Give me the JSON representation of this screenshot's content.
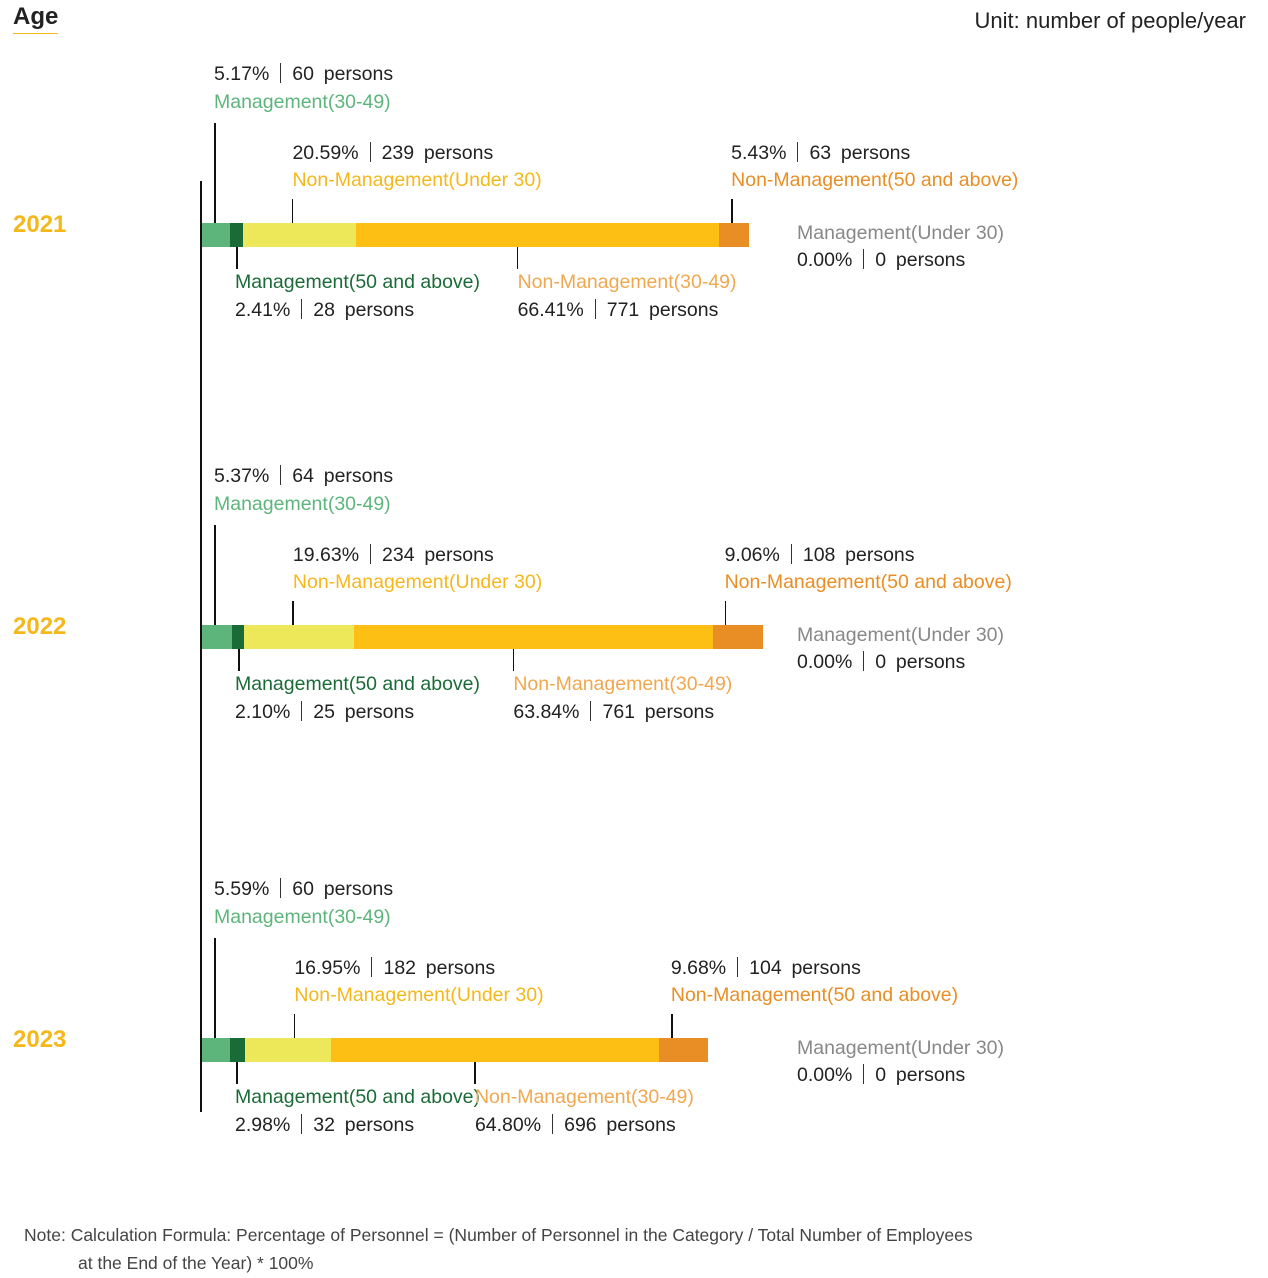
{
  "header": {
    "title": "Age",
    "unit": "Unit: number of people/year"
  },
  "note": {
    "line1": "Note: Calculation Formula: Percentage of Personnel = (Number of Personnel in the Category / Total Number of Employees",
    "line2": "at the End of the Year) * 100%"
  },
  "chart_data": {
    "type": "bar",
    "orientation": "horizontal-stacked",
    "title": "Age",
    "unit": "Unit: number of people/year",
    "categories": [
      "2021",
      "2022",
      "2023"
    ],
    "series": [
      {
        "name": "Management(Under 30)",
        "key": "mu30",
        "color": "#888888",
        "percent": [
          "0.00%",
          "0.00%",
          "0.00%"
        ],
        "persons": [
          0,
          0,
          0
        ]
      },
      {
        "name": "Management(30-49)",
        "key": "m3049",
        "color": "#5db57c",
        "percent": [
          "5.17%",
          "5.37%",
          "5.59%"
        ],
        "persons": [
          60,
          64,
          60
        ]
      },
      {
        "name": "Management(50 and above)",
        "key": "m50",
        "color": "#1a6b37",
        "percent": [
          "2.41%",
          "2.10%",
          "2.98%"
        ],
        "persons": [
          28,
          25,
          32
        ]
      },
      {
        "name": "Non-Management(Under 30)",
        "key": "nu30",
        "color": "#ede85a",
        "percent": [
          "20.59%",
          "19.63%",
          "16.95%"
        ],
        "persons": [
          239,
          234,
          182
        ]
      },
      {
        "name": "Non-Management(30-49)",
        "key": "n3049",
        "color": "#fdbf13",
        "percent": [
          "66.41%",
          "63.84%",
          "64.80%"
        ],
        "persons": [
          771,
          761,
          696
        ]
      },
      {
        "name": "Non-Management(50 and above)",
        "key": "n50",
        "color": "#e88e24",
        "percent": [
          "5.43%",
          "9.06%",
          "9.68%"
        ],
        "persons": [
          63,
          108,
          104
        ]
      }
    ],
    "label_colors": {
      "management_30_49": "#5db57c",
      "management_50": "#1a6b37",
      "non_management_under30": "#f5b81b",
      "non_management_30_49": "#f0a850",
      "non_management_50": "#e88e24",
      "management_under30": "#888888",
      "year": "#f5b81b"
    },
    "persons_word": "persons"
  }
}
